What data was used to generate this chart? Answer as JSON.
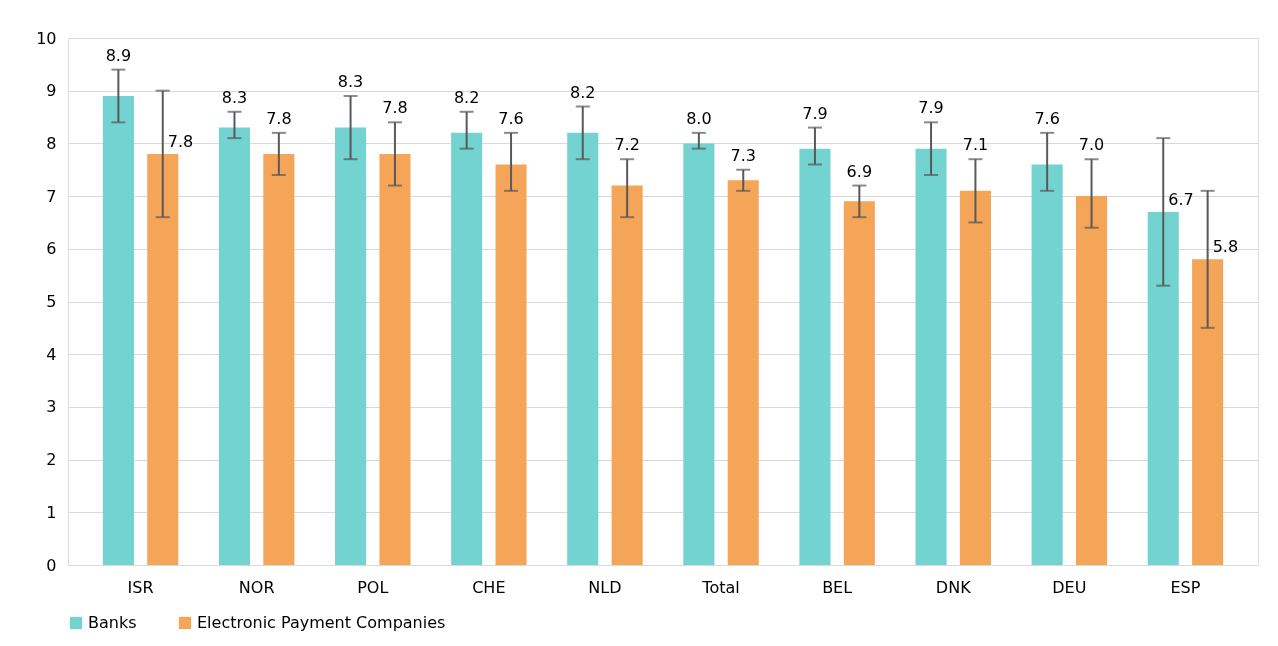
{
  "chart_data": {
    "type": "bar",
    "categories": [
      "ISR",
      "NOR",
      "POL",
      "CHE",
      "NLD",
      "Total",
      "BEL",
      "DNK",
      "DEU",
      "ESP"
    ],
    "series": [
      {
        "name": "Banks",
        "color": "#72d3d1",
        "values": [
          8.9,
          8.3,
          8.3,
          8.2,
          8.2,
          8.0,
          7.9,
          7.9,
          7.6,
          6.7
        ],
        "value_labels": [
          "8.9",
          "8.3",
          "8.3",
          "8.2",
          "8.2",
          "8.0",
          "7.9",
          "7.9",
          "7.6",
          "6.7"
        ],
        "errors": [
          [
            8.4,
            9.4
          ],
          [
            8.1,
            8.6
          ],
          [
            7.7,
            8.9
          ],
          [
            7.9,
            8.6
          ],
          [
            7.7,
            8.7
          ],
          [
            7.9,
            8.2
          ],
          [
            7.6,
            8.3
          ],
          [
            7.4,
            8.4
          ],
          [
            7.1,
            8.2
          ],
          [
            5.3,
            8.1
          ]
        ]
      },
      {
        "name": "Electronic Payment Companies",
        "color": "#f5a557",
        "values": [
          7.8,
          7.8,
          7.8,
          7.6,
          7.2,
          7.3,
          6.9,
          7.1,
          7.0,
          5.8
        ],
        "value_labels": [
          "7.8",
          "7.8",
          "7.8",
          "7.6",
          "7.2",
          "7.3",
          "6.9",
          "7.1",
          "7.0",
          "5.8"
        ],
        "errors": [
          [
            6.6,
            9.0
          ],
          [
            7.4,
            8.2
          ],
          [
            7.2,
            8.4
          ],
          [
            7.1,
            8.2
          ],
          [
            6.6,
            7.7
          ],
          [
            7.1,
            7.5
          ],
          [
            6.6,
            7.2
          ],
          [
            6.5,
            7.7
          ],
          [
            6.4,
            7.7
          ],
          [
            4.5,
            7.1
          ]
        ]
      }
    ],
    "ylim": [
      0,
      10
    ],
    "yticks": [
      0,
      1,
      2,
      3,
      4,
      5,
      6,
      7,
      8,
      9,
      10
    ],
    "grid": "y",
    "legend": "bottom"
  }
}
